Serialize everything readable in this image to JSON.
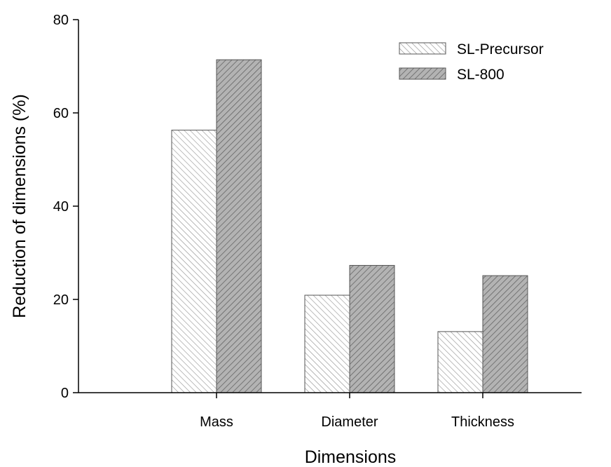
{
  "chart_data": {
    "type": "bar",
    "title": "",
    "xlabel": "Dimensions",
    "ylabel": "Reduction of dimensions (%)",
    "categories": [
      "Mass",
      "Diameter",
      "Thickness"
    ],
    "series": [
      {
        "name": "SL-Precursor",
        "values": [
          56.3,
          20.9,
          13.1
        ],
        "fill": "#ffffff",
        "hatch": "light-diagonal"
      },
      {
        "name": "SL-800",
        "values": [
          71.4,
          27.3,
          25.1
        ],
        "fill": "#a9a9a9",
        "hatch": "dark-diagonal"
      }
    ],
    "ylim": [
      0,
      80
    ],
    "yticks": [
      0,
      20,
      40,
      60,
      80
    ],
    "grid": false,
    "legend_position": "top-right"
  }
}
